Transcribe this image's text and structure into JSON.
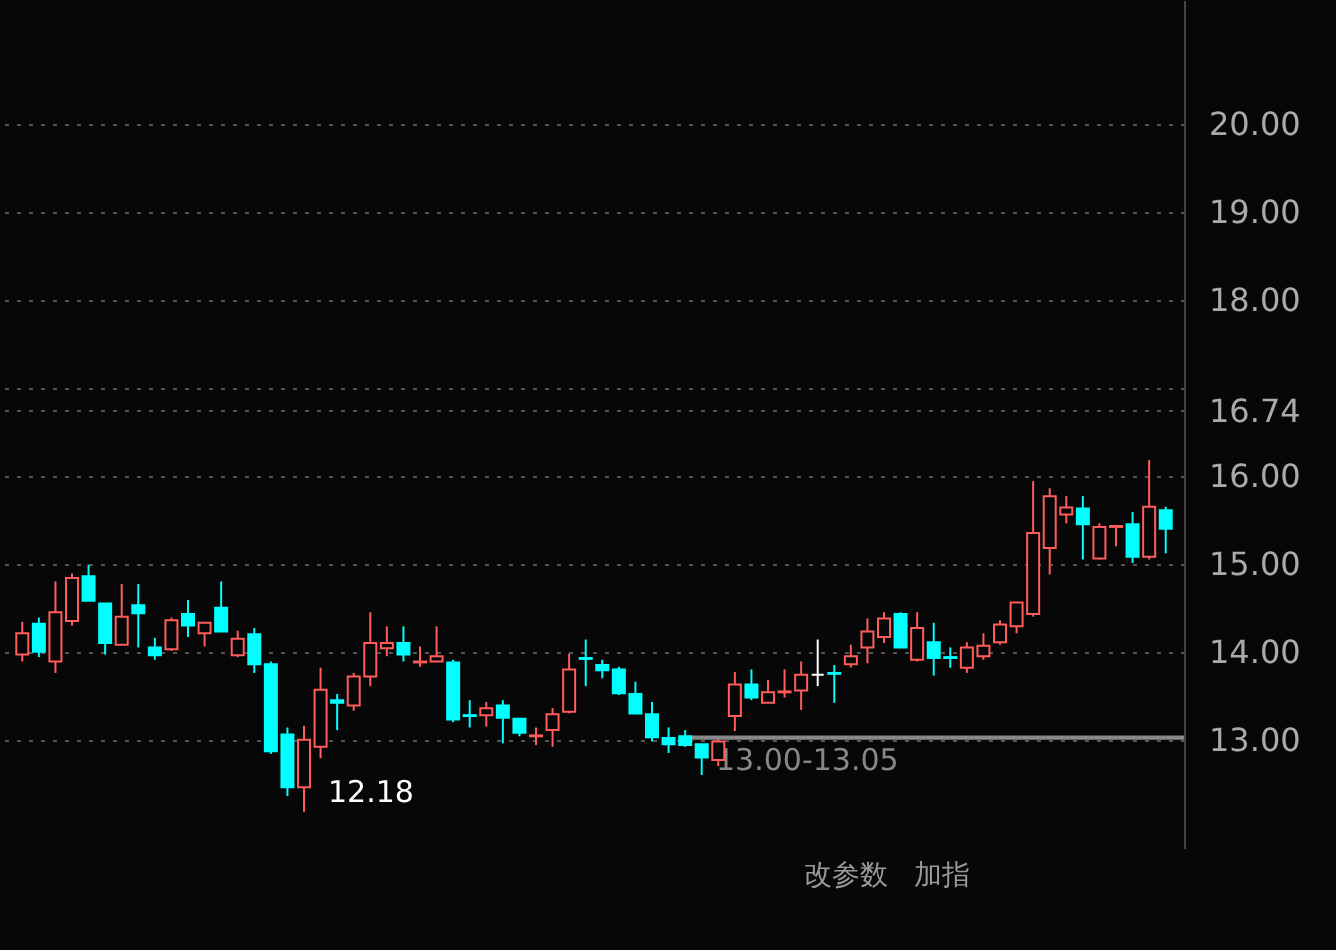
{
  "chart_data": {
    "type": "candlestick",
    "categories": [
      null,
      null,
      null,
      null,
      null,
      null,
      null,
      null,
      null,
      null,
      null,
      null,
      null,
      null,
      null,
      null,
      null,
      null,
      null,
      null,
      null,
      null,
      null,
      null,
      null,
      null,
      null,
      null,
      null,
      null,
      null,
      null,
      null,
      null,
      null,
      null,
      null,
      null,
      null,
      null,
      null,
      null,
      null,
      null,
      null,
      null,
      null,
      null,
      null,
      null,
      null,
      null,
      null,
      null,
      null,
      null,
      null,
      null,
      null,
      null,
      null,
      null,
      null,
      null,
      null,
      null,
      null,
      null,
      null,
      null
    ],
    "ohlc": [
      [
        13.97,
        14.34,
        13.89,
        14.21
      ],
      [
        14.32,
        14.39,
        13.94,
        14.0
      ],
      [
        13.89,
        14.8,
        13.76,
        14.45
      ],
      [
        14.35,
        14.89,
        14.3,
        14.84
      ],
      [
        14.86,
        14.99,
        14.58,
        14.58
      ],
      [
        14.55,
        14.55,
        13.97,
        14.1
      ],
      [
        14.08,
        14.77,
        14.08,
        14.4
      ],
      [
        14.53,
        14.77,
        14.05,
        14.44
      ],
      [
        14.05,
        14.16,
        13.91,
        13.96
      ],
      [
        14.03,
        14.39,
        14.01,
        14.36
      ],
      [
        14.43,
        14.59,
        14.17,
        14.3
      ],
      [
        14.21,
        14.33,
        14.06,
        14.33
      ],
      [
        14.5,
        14.8,
        14.23,
        14.23
      ],
      [
        13.96,
        14.24,
        13.94,
        14.15
      ],
      [
        14.2,
        14.27,
        13.76,
        13.86
      ],
      [
        13.86,
        13.89,
        12.84,
        12.87
      ],
      [
        13.06,
        13.14,
        12.36,
        12.46
      ],
      [
        12.46,
        13.16,
        12.18,
        13.0
      ],
      [
        12.92,
        13.82,
        12.79,
        13.57
      ],
      [
        13.45,
        13.52,
        13.11,
        13.42
      ],
      [
        13.39,
        13.76,
        13.33,
        13.72
      ],
      [
        13.72,
        14.45,
        13.61,
        14.1
      ],
      [
        14.04,
        14.29,
        13.95,
        14.1
      ],
      [
        14.1,
        14.29,
        13.89,
        13.97
      ],
      [
        13.88,
        14.06,
        13.83,
        13.89
      ],
      [
        13.89,
        14.29,
        13.89,
        13.95
      ],
      [
        13.88,
        13.91,
        13.2,
        13.23
      ],
      [
        13.28,
        13.45,
        13.14,
        13.27
      ],
      [
        13.28,
        13.43,
        13.15,
        13.36
      ],
      [
        13.39,
        13.45,
        12.96,
        13.25
      ],
      [
        13.24,
        13.24,
        13.04,
        13.08
      ],
      [
        13.04,
        13.14,
        12.94,
        13.05
      ],
      [
        13.11,
        13.36,
        12.92,
        13.29
      ],
      [
        13.32,
        13.98,
        13.3,
        13.8
      ],
      [
        13.93,
        14.14,
        13.61,
        13.92
      ],
      [
        13.85,
        13.91,
        13.7,
        13.79
      ],
      [
        13.8,
        13.83,
        13.51,
        13.53
      ],
      [
        13.52,
        13.66,
        13.3,
        13.3
      ],
      [
        13.29,
        13.43,
        12.98,
        13.03
      ],
      [
        13.02,
        13.14,
        12.85,
        12.95
      ],
      [
        13.04,
        13.11,
        12.92,
        12.94
      ],
      [
        12.95,
        12.95,
        12.6,
        12.8
      ],
      [
        12.77,
        13.04,
        12.7,
        12.98
      ],
      [
        13.27,
        13.77,
        13.1,
        13.63
      ],
      [
        13.63,
        13.8,
        13.45,
        13.48
      ],
      [
        13.42,
        13.68,
        13.42,
        13.54
      ],
      [
        13.54,
        13.8,
        13.48,
        13.55
      ],
      [
        13.56,
        13.89,
        13.34,
        13.74
      ],
      [
        13.74,
        14.14,
        13.61,
        13.74
      ],
      [
        13.76,
        13.85,
        13.42,
        13.75
      ],
      [
        13.86,
        14.08,
        13.82,
        13.95
      ],
      [
        14.05,
        14.38,
        13.87,
        14.23
      ],
      [
        14.17,
        14.45,
        14.1,
        14.38
      ],
      [
        14.43,
        14.45,
        14.05,
        14.05
      ],
      [
        13.91,
        14.45,
        13.89,
        14.27
      ],
      [
        14.11,
        14.33,
        13.73,
        13.93
      ],
      [
        13.94,
        14.05,
        13.82,
        13.93
      ],
      [
        13.82,
        14.11,
        13.76,
        14.05
      ],
      [
        13.95,
        14.21,
        13.91,
        14.07
      ],
      [
        14.11,
        14.36,
        14.08,
        14.31
      ],
      [
        14.29,
        14.56,
        14.21,
        14.56
      ],
      [
        14.43,
        15.94,
        14.4,
        15.35
      ],
      [
        15.18,
        15.86,
        14.88,
        15.77
      ],
      [
        15.56,
        15.77,
        15.46,
        15.64
      ],
      [
        15.63,
        15.77,
        15.05,
        15.45
      ],
      [
        15.06,
        15.46,
        15.05,
        15.42
      ],
      [
        15.42,
        15.43,
        15.2,
        15.43
      ],
      [
        15.45,
        15.59,
        15.01,
        15.08
      ],
      [
        15.08,
        16.18,
        15.05,
        15.65
      ],
      [
        15.61,
        15.65,
        15.12,
        15.4
      ]
    ],
    "colors": [
      "#ff5c5c",
      "#00ffff",
      "#ff5c5c",
      "#ff5c5c",
      "#00ffff",
      "#00ffff",
      "#ff5c5c",
      "#00ffff",
      "#00ffff",
      "#ff5c5c",
      "#00ffff",
      "#ff5c5c",
      "#00ffff",
      "#ff5c5c",
      "#00ffff",
      "#00ffff",
      "#00ffff",
      "#ff5c5c",
      "#ff5c5c",
      "#00ffff",
      "#ff5c5c",
      "#ff5c5c",
      "#ff5c5c",
      "#00ffff",
      "#ff5c5c",
      "#ff5c5c",
      "#00ffff",
      "#00ffff",
      "#ff5c5c",
      "#00ffff",
      "#00ffff",
      "#ff5c5c",
      "#ff5c5c",
      "#ff5c5c",
      "#00ffff",
      "#00ffff",
      "#00ffff",
      "#00ffff",
      "#00ffff",
      "#00ffff",
      "#00ffff",
      "#00ffff",
      "#ff5c5c",
      "#ff5c5c",
      "#00ffff",
      "#ff5c5c",
      "#ff5c5c",
      "#ff5c5c",
      "#ffffff",
      "#00ffff",
      "#ff5c5c",
      "#ff5c5c",
      "#ff5c5c",
      "#00ffff",
      "#ff5c5c",
      "#00ffff",
      "#00ffff",
      "#ff5c5c",
      "#ff5c5c",
      "#ff5c5c",
      "#ff5c5c",
      "#ff5c5c",
      "#ff5c5c",
      "#ff5c5c",
      "#00ffff",
      "#ff5c5c",
      "#ff5c5c",
      "#00ffff",
      "#ff5c5c",
      "#00ffff"
    ],
    "ylim": [
      11.77,
      21.41
    ],
    "yticks": [
      {
        "value": 13,
        "label": "13.00"
      },
      {
        "value": 14,
        "label": "14.00"
      },
      {
        "value": 15,
        "label": "15.00"
      },
      {
        "value": 16,
        "label": "16.00"
      },
      {
        "value": 16.74,
        "label": "16.74"
      },
      {
        "value": 17,
        "label": null
      },
      {
        "value": 18,
        "label": "18.00"
      },
      {
        "value": 19,
        "label": "19.00"
      },
      {
        "value": 20,
        "label": "20.00"
      }
    ],
    "grid": "y",
    "tick_labels": "y",
    "bands": [
      {
        "axis": "y",
        "from": 13.0,
        "to": 13.05,
        "label": "13.00-13.05",
        "color": "#888888"
      }
    ],
    "annotations": [
      "12.18",
      "改参数",
      "加指"
    ]
  }
}
